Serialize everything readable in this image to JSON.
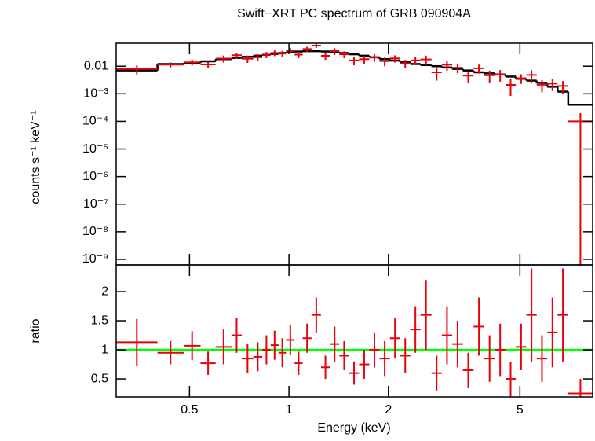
{
  "chart_data": {
    "type": "spectrum",
    "title": "Swift−XRT PC spectrum of GRB 090904A",
    "xlabel": "Energy (keV)",
    "xscale": "log",
    "xlim": [
      0.3,
      8.3
    ],
    "xticks": [
      0.5,
      1,
      2,
      5
    ],
    "x_edges": [
      0.3,
      0.4,
      0.48,
      0.54,
      0.6,
      0.67,
      0.72,
      0.78,
      0.83,
      0.88,
      0.93,
      0.98,
      1.04,
      1.1,
      1.17,
      1.25,
      1.33,
      1.42,
      1.52,
      1.63,
      1.75,
      1.88,
      2.02,
      2.17,
      2.33,
      2.5,
      2.7,
      2.9,
      3.12,
      3.36,
      3.62,
      3.9,
      4.2,
      4.52,
      4.86,
      5.23,
      5.62,
      6.05,
      6.5,
      7.0,
      8.3
    ],
    "panels": [
      {
        "ylabel": "counts s⁻¹ keV⁻¹",
        "yscale": "log",
        "ylim": [
          6.3e-10,
          0.068
        ],
        "yticks": [
          0.01,
          {
            "value": 0.001,
            "label": "10⁻³"
          },
          {
            "value": 0.0001,
            "label": "10⁻⁴"
          },
          {
            "value": 1e-05,
            "label": "10⁻⁵"
          },
          {
            "value": 1e-06,
            "label": "10⁻⁶"
          },
          {
            "value": 1e-07,
            "label": "10⁻⁷"
          },
          {
            "value": 1e-08,
            "label": "10⁻⁸"
          },
          {
            "value": 1e-09,
            "label": "10⁻⁹"
          }
        ],
        "data": {
          "color": "#e8000b",
          "values": [
            0.0079,
            0.0114,
            0.0139,
            0.0116,
            0.0189,
            0.025,
            0.0187,
            0.0211,
            0.026,
            0.0302,
            0.0285,
            0.0374,
            0.0262,
            0.042,
            0.056,
            0.0238,
            0.0352,
            0.027,
            0.0162,
            0.018,
            0.021,
            0.0153,
            0.0192,
            0.0126,
            0.0162,
            0.0176,
            0.006,
            0.0113,
            0.0088,
            0.00455,
            0.0084,
            0.00468,
            0.005,
            0.0021,
            0.00368,
            0.0048,
            0.00213,
            0.00234,
            0.00192,
            0.0001
          ],
          "errors": [
            0.0028,
            0.0024,
            0.00325,
            0.003,
            0.0054,
            0.006,
            0.0055,
            0.006,
            0.0065,
            0.007,
            0.0075,
            0.008,
            0.0068,
            0.00875,
            0.0105,
            0.0068,
            0.0096,
            0.0075,
            0.0054,
            0.006,
            0.0063,
            0.0054,
            0.0056,
            0.0042,
            0.0048,
            0.0066,
            0.003,
            0.0045,
            0.0032,
            0.0021,
            0.003,
            0.0022,
            0.00225,
            0.00126,
            0.0014,
            0.0024,
            0.001,
            0.00108,
            0.00096,
            0.0001
          ]
        },
        "model": {
          "color": "#000000",
          "values": [
            0.007,
            0.012,
            0.013,
            0.015,
            0.018,
            0.02,
            0.022,
            0.024,
            0.026,
            0.028,
            0.03,
            0.032,
            0.034,
            0.035,
            0.035,
            0.034,
            0.032,
            0.03,
            0.027,
            0.024,
            0.021,
            0.018,
            0.016,
            0.014,
            0.012,
            0.011,
            0.01,
            0.009,
            0.008,
            0.007,
            0.006,
            0.0055,
            0.005,
            0.0042,
            0.0035,
            0.003,
            0.0025,
            0.0018,
            0.0012,
            0.0004
          ]
        }
      },
      {
        "ylabel": "ratio",
        "yscale": "linear",
        "ylim": [
          0.19,
          2.46
        ],
        "yticks": [
          0.5,
          1,
          1.5,
          2
        ],
        "reference_line": {
          "value": 1,
          "color": "#00ff00"
        },
        "data": {
          "color": "#e8000b",
          "values": [
            1.13,
            0.95,
            1.07,
            0.77,
            1.05,
            1.25,
            0.85,
            0.88,
            1.0,
            1.08,
            0.95,
            1.17,
            0.77,
            1.2,
            1.6,
            0.7,
            1.1,
            0.9,
            0.6,
            0.75,
            1.0,
            0.85,
            1.2,
            0.9,
            1.35,
            1.6,
            0.6,
            1.25,
            1.1,
            0.65,
            1.4,
            0.85,
            1.0,
            0.5,
            1.05,
            1.6,
            0.85,
            1.3,
            1.6,
            0.25
          ],
          "errors": [
            0.4,
            0.2,
            0.25,
            0.2,
            0.3,
            0.3,
            0.25,
            0.25,
            0.25,
            0.25,
            0.25,
            0.25,
            0.2,
            0.25,
            0.3,
            0.2,
            0.3,
            0.25,
            0.2,
            0.25,
            0.3,
            0.3,
            0.35,
            0.3,
            0.4,
            0.6,
            0.3,
            0.5,
            0.4,
            0.3,
            0.5,
            0.4,
            0.45,
            0.3,
            0.4,
            0.8,
            0.4,
            0.6,
            0.8,
            0.25
          ]
        }
      }
    ]
  }
}
